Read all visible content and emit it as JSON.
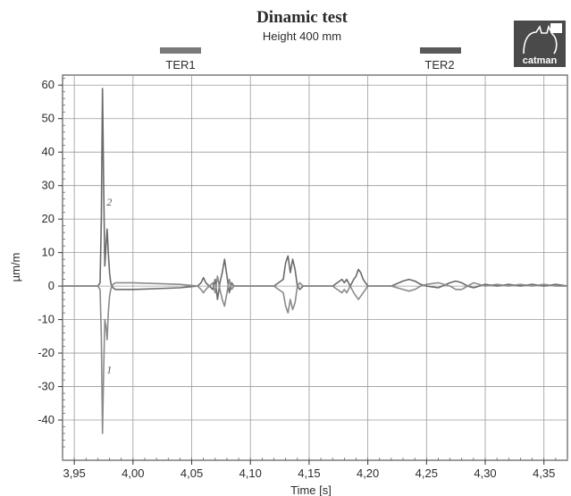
{
  "chart_data": {
    "type": "line",
    "title": "Dinamic test",
    "subtitle": "Height 400 mm",
    "xlabel": "Time [s]",
    "ylabel": "µm/m",
    "xlim": [
      3.94,
      4.37
    ],
    "ylim": [
      -52,
      63
    ],
    "x_ticks": [
      {
        "value": 3.95,
        "label": "3,95"
      },
      {
        "value": 4.0,
        "label": "4,00"
      },
      {
        "value": 4.05,
        "label": "4,05"
      },
      {
        "value": 4.1,
        "label": "4,10"
      },
      {
        "value": 4.15,
        "label": "4,15"
      },
      {
        "value": 4.2,
        "label": "4,20"
      },
      {
        "value": 4.25,
        "label": "4,25"
      },
      {
        "value": 4.3,
        "label": "4,30"
      },
      {
        "value": 4.35,
        "label": "4,35"
      }
    ],
    "y_ticks": [
      {
        "value": 60,
        "label": "60"
      },
      {
        "value": 50,
        "label": "50"
      },
      {
        "value": 40,
        "label": "40"
      },
      {
        "value": 30,
        "label": "30"
      },
      {
        "value": 20,
        "label": "20"
      },
      {
        "value": 10,
        "label": "10"
      },
      {
        "value": 0,
        "label": "0"
      },
      {
        "value": -10,
        "label": "-10"
      },
      {
        "value": -20,
        "label": "-20"
      },
      {
        "value": -30,
        "label": "-30"
      },
      {
        "value": -40,
        "label": "-40"
      }
    ],
    "grid": true,
    "legend": [
      {
        "label": "TER1",
        "color": "#7a7a7a",
        "position": "top-left"
      },
      {
        "label": "TER2",
        "color": "#5a5a5a",
        "position": "top-right"
      }
    ],
    "annotations": [
      {
        "text": "2",
        "x": 3.9775,
        "y": 24
      },
      {
        "text": "1",
        "x": 3.9775,
        "y": -26
      }
    ],
    "series": [
      {
        "color": "#6a6a6a",
        "x": [
          3.94,
          3.965,
          3.97,
          3.972,
          3.973,
          3.974,
          3.975,
          3.976,
          3.977,
          3.978,
          3.979,
          3.98,
          3.981,
          3.982,
          3.983,
          3.985,
          4.0,
          4.04,
          4.055,
          4.058,
          4.06,
          4.062,
          4.065,
          4.068,
          4.07,
          4.072,
          4.074,
          4.076,
          4.078,
          4.08,
          4.082,
          4.084,
          4.086,
          4.09,
          4.12,
          4.128,
          4.13,
          4.132,
          4.134,
          4.136,
          4.138,
          4.14,
          4.142,
          4.145,
          4.15,
          4.17,
          4.178,
          4.18,
          4.182,
          4.185,
          4.188,
          4.19,
          4.192,
          4.194,
          4.196,
          4.198,
          4.2,
          4.205,
          4.22,
          4.23,
          4.235,
          4.24,
          4.245,
          4.25,
          4.26,
          4.27,
          4.275,
          4.28,
          4.285,
          4.29,
          4.3,
          4.31,
          4.32,
          4.33,
          4.34,
          4.35,
          4.36,
          4.37
        ],
        "values": [
          0,
          0,
          0,
          1,
          20,
          59,
          30,
          6,
          12,
          17,
          10,
          4,
          1,
          0,
          -0.5,
          -1,
          -1,
          -0.5,
          0,
          1,
          2.5,
          1,
          0,
          -1,
          2,
          -4,
          1,
          4,
          8,
          3,
          -2,
          1,
          0,
          0,
          0,
          2,
          7,
          9,
          4,
          8,
          5,
          0,
          -1,
          0,
          0,
          0,
          2,
          1,
          2,
          0,
          2,
          3,
          5,
          4,
          2,
          1,
          0,
          0,
          0,
          1.5,
          2,
          1.5,
          0.5,
          0,
          -0.5,
          1,
          1.5,
          1,
          0,
          -0.5,
          0.5,
          0,
          0.5,
          0,
          0.5,
          0,
          0.5,
          0
        ]
      },
      {
        "color": "#8a8a8a",
        "x": [
          3.94,
          3.965,
          3.97,
          3.972,
          3.973,
          3.974,
          3.975,
          3.976,
          3.977,
          3.978,
          3.979,
          3.98,
          3.981,
          3.982,
          3.983,
          3.985,
          4.0,
          4.04,
          4.055,
          4.058,
          4.06,
          4.062,
          4.065,
          4.068,
          4.07,
          4.072,
          4.074,
          4.076,
          4.078,
          4.08,
          4.082,
          4.084,
          4.086,
          4.09,
          4.12,
          4.128,
          4.13,
          4.132,
          4.134,
          4.136,
          4.138,
          4.14,
          4.142,
          4.145,
          4.15,
          4.17,
          4.178,
          4.18,
          4.182,
          4.185,
          4.188,
          4.19,
          4.192,
          4.194,
          4.196,
          4.198,
          4.2,
          4.205,
          4.22,
          4.23,
          4.235,
          4.24,
          4.245,
          4.25,
          4.26,
          4.27,
          4.275,
          4.28,
          4.285,
          4.29,
          4.3,
          4.31,
          4.32,
          4.33,
          4.34,
          4.35,
          4.36,
          4.37
        ],
        "values": [
          0,
          0,
          0,
          -1,
          -15,
          -44,
          -25,
          -10,
          -12,
          -16,
          -8,
          -3,
          -1,
          0,
          0.5,
          1,
          1,
          0.5,
          0,
          -1,
          -2,
          -1,
          0,
          1,
          -2,
          3,
          -1,
          -4,
          -6,
          -2,
          2,
          -1,
          0,
          0,
          0,
          -2,
          -6,
          -8,
          -4,
          -7,
          -5,
          0,
          1,
          0,
          0,
          0,
          -2,
          -1,
          -2,
          0,
          -2,
          -3,
          -4,
          -3,
          -2,
          -1,
          0,
          0,
          0,
          -1,
          -1.5,
          -1,
          0,
          0.5,
          1,
          0,
          -1,
          -1,
          0,
          1,
          0,
          0.5,
          0,
          0.5,
          0,
          0.5,
          0,
          0
        ]
      }
    ]
  },
  "logo": {
    "text": "catman"
  }
}
